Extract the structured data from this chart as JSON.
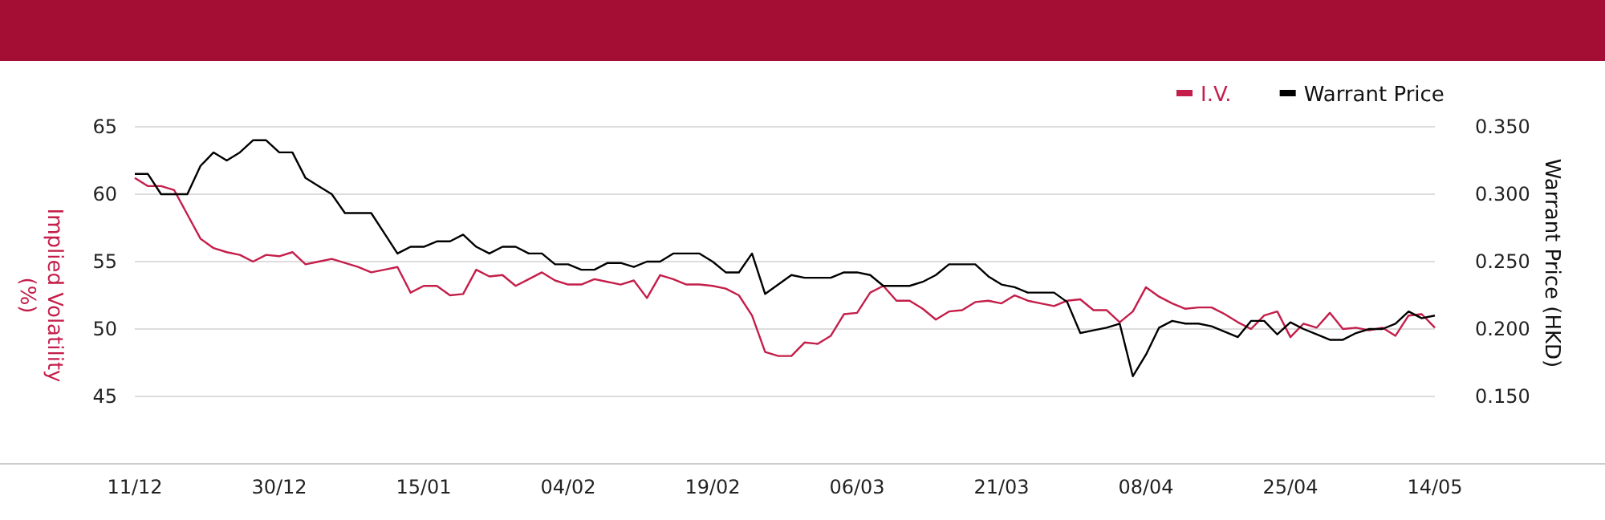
{
  "chart_data": {
    "type": "line",
    "ylabel": "Implied Volatility (%)",
    "y2label": "Warrant Price (HKD)",
    "categories": [
      "11/12",
      null,
      null,
      null,
      null,
      null,
      null,
      null,
      null,
      null,
      null,
      "30/12",
      null,
      null,
      null,
      null,
      null,
      null,
      null,
      null,
      null,
      null,
      "15/01",
      null,
      null,
      null,
      null,
      null,
      null,
      null,
      null,
      null,
      null,
      "04/02",
      null,
      null,
      null,
      null,
      null,
      null,
      null,
      null,
      null,
      null,
      "19/02",
      null,
      null,
      null,
      null,
      null,
      null,
      null,
      null,
      null,
      null,
      "06/03",
      null,
      null,
      null,
      null,
      null,
      null,
      null,
      null,
      null,
      null,
      "21/03",
      null,
      null,
      null,
      null,
      null,
      null,
      null,
      null,
      null,
      null,
      "08/04",
      null,
      null,
      null,
      null,
      null,
      null,
      null,
      null,
      null,
      null,
      "25/04",
      null,
      null,
      null,
      null,
      null,
      null,
      null,
      null,
      null,
      null,
      "14/05"
    ],
    "ylim": [
      40,
      65
    ],
    "yticks": [
      45,
      50,
      55,
      60,
      65
    ],
    "y2lim": [
      0.1,
      0.35
    ],
    "y2ticks": [
      {
        "value": 0.15,
        "label": "0.150"
      },
      {
        "value": 0.2,
        "label": "0.200"
      },
      {
        "value": 0.25,
        "label": "0.250"
      },
      {
        "value": 0.3,
        "label": "0.300"
      },
      {
        "value": 0.35,
        "label": "0.350"
      }
    ],
    "grid": "y",
    "legend": "top right",
    "series": [
      {
        "name": "I.V.",
        "color": "#c41e4a",
        "values": [
          61.2,
          60.6,
          60.6,
          60.3,
          58.5,
          56.7,
          56.0,
          55.7,
          55.5,
          55.0,
          55.5,
          55.4,
          55.7,
          54.8,
          55.0,
          55.2,
          54.9,
          54.6,
          54.2,
          54.4,
          54.6,
          52.7,
          53.2,
          53.2,
          52.5,
          52.6,
          54.4,
          53.9,
          54.0,
          53.2,
          53.7,
          54.2,
          53.6,
          53.3,
          53.3,
          53.7,
          53.5,
          53.3,
          53.6,
          52.3,
          54.0,
          53.7,
          53.3,
          53.3,
          53.2,
          53.0,
          52.5,
          51.0,
          48.3,
          48.0,
          48.0,
          49.0,
          48.9,
          49.5,
          51.1,
          51.2,
          52.7,
          53.2,
          52.1,
          52.1,
          51.5,
          50.7,
          51.3,
          51.4,
          52.0,
          52.1,
          51.9,
          52.5,
          52.1,
          51.9,
          51.7,
          52.1,
          52.2,
          51.4,
          51.4,
          50.5,
          51.3,
          53.1,
          52.4,
          51.9,
          51.5,
          51.6,
          51.6,
          51.1,
          50.5,
          50.0,
          51.0,
          51.3,
          49.4,
          50.4,
          50.1,
          51.2,
          50.0,
          50.1,
          49.9,
          50.1,
          49.5,
          51.0,
          51.1,
          50.1
        ]
      },
      {
        "name": "Warrant Price",
        "color": "#000000",
        "axis": "y2",
        "values": [
          0.315,
          0.315,
          0.3,
          0.3,
          0.3,
          0.321,
          0.331,
          0.325,
          0.331,
          0.34,
          0.34,
          0.331,
          0.331,
          0.312,
          0.306,
          0.3,
          0.286,
          0.286,
          0.286,
          0.271,
          0.256,
          0.261,
          0.261,
          0.265,
          0.265,
          0.27,
          0.261,
          0.256,
          0.261,
          0.261,
          0.256,
          0.256,
          0.248,
          0.248,
          0.244,
          0.244,
          0.249,
          0.249,
          0.246,
          0.25,
          0.25,
          0.256,
          0.256,
          0.256,
          0.25,
          0.242,
          0.242,
          0.256,
          0.226,
          0.233,
          0.24,
          0.238,
          0.238,
          0.238,
          0.242,
          0.242,
          0.24,
          0.232,
          0.232,
          0.232,
          0.235,
          0.24,
          0.248,
          0.248,
          0.248,
          0.239,
          0.233,
          0.231,
          0.227,
          0.227,
          0.227,
          0.22,
          0.197,
          0.199,
          0.201,
          0.204,
          0.165,
          0.181,
          0.201,
          0.206,
          0.204,
          0.204,
          0.202,
          0.198,
          0.194,
          0.206,
          0.206,
          0.196,
          0.205,
          0.2,
          0.196,
          0.192,
          0.192,
          0.197,
          0.2,
          0.2,
          0.204,
          0.213,
          0.208,
          0.21
        ]
      }
    ]
  }
}
